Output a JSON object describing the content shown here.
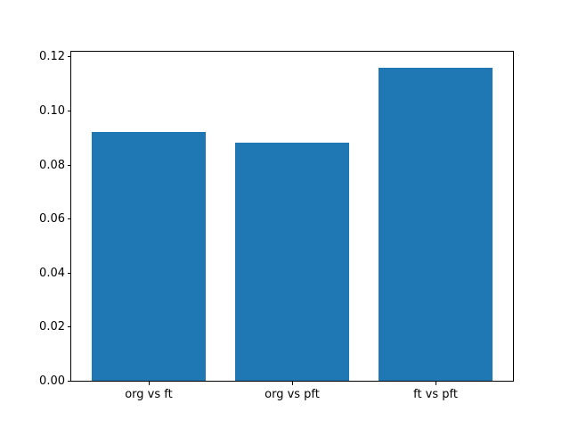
{
  "figure": {
    "background": "#ffffff",
    "text_color": "#000000",
    "spine_color": "#000000"
  },
  "chart_data": {
    "type": "bar",
    "title": "",
    "xlabel": "",
    "ylabel": "",
    "categories": [
      "org vs ft",
      "org vs pft",
      "ft vs pft"
    ],
    "values": [
      0.092,
      0.088,
      0.116
    ],
    "bar_color": "#1f77b4",
    "bar_width": 0.8,
    "xlim": [
      -0.54,
      2.54
    ],
    "ylim": [
      0,
      0.1218
    ],
    "yticks": [
      0.0,
      0.02,
      0.04,
      0.06,
      0.08,
      0.1,
      0.12
    ],
    "ytick_labels": [
      "0.00",
      "0.02",
      "0.04",
      "0.06",
      "0.08",
      "0.10",
      "0.12"
    ],
    "grid": false,
    "legend": null
  }
}
